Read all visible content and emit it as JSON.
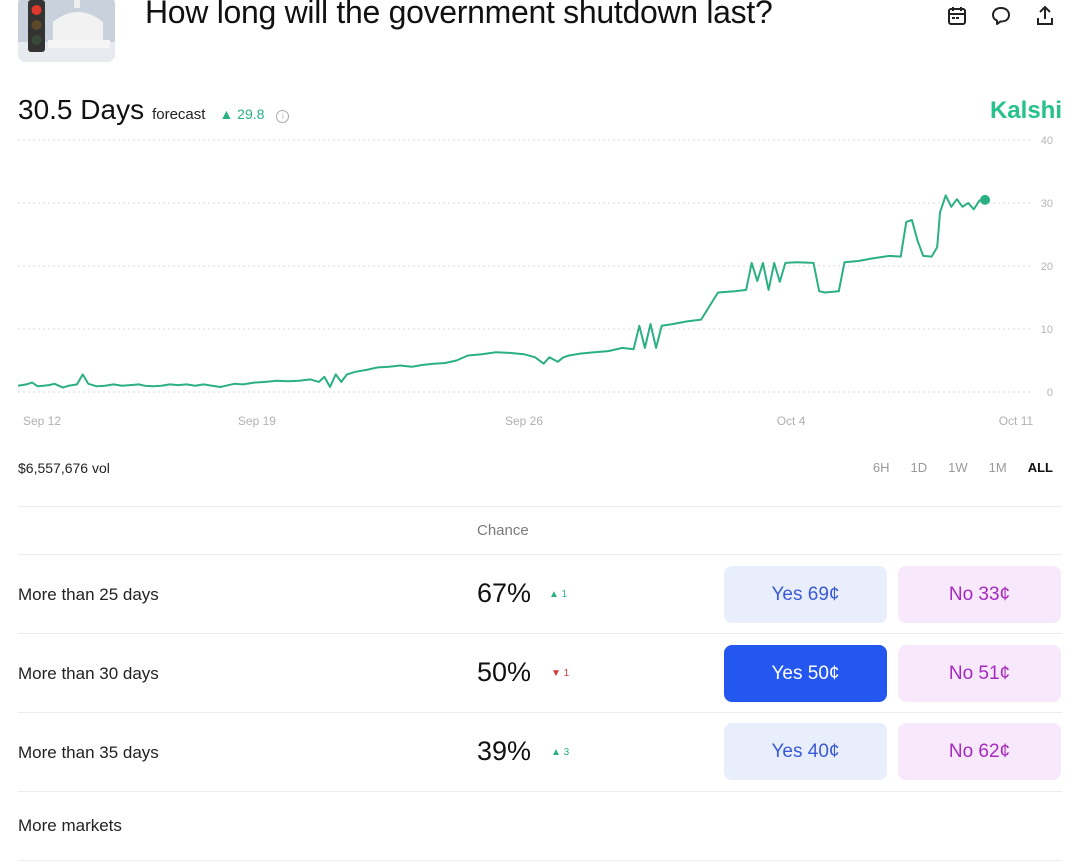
{
  "header": {
    "title": "How long will the government shutdown last?",
    "icons": [
      "calendar-icon",
      "comment-icon",
      "share-icon"
    ]
  },
  "forecast": {
    "value": "30.5 Days",
    "label": "forecast",
    "change": "▲ 29.8",
    "brand": "Kalshi"
  },
  "colors": {
    "accent": "#25c28a",
    "line": "#2bb083",
    "yes_selected": "#2456f0",
    "yes_bg": "#e9eefc",
    "no_bg": "#f7e9fb",
    "down": "#d93838"
  },
  "chart_data": {
    "type": "line",
    "x_ticks": [
      "Sep 12",
      "Sep 19",
      "Sep 26",
      "Oct 4",
      "Oct 11"
    ],
    "y_ticks": [
      "0",
      "10",
      "20",
      "30",
      "40"
    ],
    "ylim": [
      0,
      40
    ],
    "grid": true,
    "series": [
      {
        "values": [
          [
            0,
            1
          ],
          [
            3,
            1.2
          ],
          [
            5,
            1.5
          ],
          [
            7,
            0.9
          ],
          [
            9,
            1
          ],
          [
            11,
            1.1
          ],
          [
            13,
            1.3
          ],
          [
            16,
            0.7
          ],
          [
            18,
            1
          ],
          [
            21,
            1.2
          ],
          [
            23,
            2.8
          ],
          [
            25,
            1.3
          ],
          [
            28,
            0.9
          ],
          [
            31,
            1
          ],
          [
            34,
            1.2
          ],
          [
            37,
            1
          ],
          [
            40,
            1.1
          ],
          [
            43,
            1.2
          ],
          [
            45,
            1
          ],
          [
            48,
            0.9
          ],
          [
            51,
            1
          ],
          [
            54,
            1.2
          ],
          [
            57,
            1.1
          ],
          [
            60,
            1.2
          ],
          [
            63,
            1
          ],
          [
            66,
            1.2
          ],
          [
            69,
            1
          ],
          [
            72,
            0.8
          ],
          [
            74,
            1
          ],
          [
            77,
            1.3
          ],
          [
            80,
            1.2
          ],
          [
            84,
            1.5
          ],
          [
            88,
            1.6
          ],
          [
            92,
            1.8
          ],
          [
            96,
            1.7
          ],
          [
            100,
            1.8
          ],
          [
            104,
            2
          ],
          [
            107,
            1.6
          ],
          [
            109,
            2.4
          ],
          [
            111,
            0.8
          ],
          [
            113,
            2.8
          ],
          [
            115,
            1.6
          ],
          [
            117,
            2.8
          ],
          [
            120,
            3.2
          ],
          [
            124,
            3.5
          ],
          [
            128,
            3.9
          ],
          [
            132,
            4
          ],
          [
            136,
            4.2
          ],
          [
            140,
            4
          ],
          [
            144,
            4.3
          ],
          [
            148,
            4.5
          ],
          [
            152,
            4.6
          ],
          [
            156,
            5
          ],
          [
            160,
            5.8
          ],
          [
            165,
            6
          ],
          [
            170,
            6.3
          ],
          [
            175,
            6.2
          ],
          [
            180,
            6
          ],
          [
            184,
            5.5
          ],
          [
            187,
            4.5
          ],
          [
            189,
            5.5
          ],
          [
            192,
            4.8
          ],
          [
            194,
            5.5
          ],
          [
            196,
            5.8
          ],
          [
            200,
            6.1
          ],
          [
            205,
            6.3
          ],
          [
            210,
            6.5
          ],
          [
            215,
            7
          ],
          [
            219,
            6.8
          ],
          [
            221,
            10.5
          ],
          [
            223,
            7
          ],
          [
            225,
            10.8
          ],
          [
            227,
            7
          ],
          [
            229,
            10.5
          ],
          [
            233,
            10.8
          ],
          [
            238,
            11.2
          ],
          [
            243,
            11.5
          ],
          [
            249,
            15.8
          ],
          [
            255,
            16
          ],
          [
            259,
            16.2
          ],
          [
            261,
            20.5
          ],
          [
            263,
            17.6
          ],
          [
            265,
            20.5
          ],
          [
            267,
            16.2
          ],
          [
            269,
            20.5
          ],
          [
            271,
            17.5
          ],
          [
            273,
            20.5
          ],
          [
            277,
            20.6
          ],
          [
            283,
            20.5
          ],
          [
            285,
            16
          ],
          [
            287,
            15.8
          ],
          [
            292,
            16
          ],
          [
            294,
            20.6
          ],
          [
            299,
            20.8
          ],
          [
            304,
            21.2
          ],
          [
            310,
            21.6
          ],
          [
            314,
            21.5
          ],
          [
            316,
            27
          ],
          [
            318,
            27.3
          ],
          [
            320,
            24
          ],
          [
            322,
            21.6
          ],
          [
            325,
            21.5
          ],
          [
            327,
            23
          ],
          [
            328,
            28.5
          ],
          [
            330,
            31.2
          ],
          [
            332,
            29.4
          ],
          [
            334,
            30.6
          ],
          [
            336,
            29.4
          ],
          [
            338,
            30
          ],
          [
            340,
            29
          ],
          [
            342,
            30.4
          ],
          [
            344,
            30.5
          ]
        ]
      }
    ]
  },
  "volume": "$6,557,676 vol",
  "ranges": [
    "6H",
    "1D",
    "1W",
    "1M",
    "ALL"
  ],
  "active_range": "ALL",
  "table": {
    "chance_header": "Chance",
    "rows": [
      {
        "label": "More than 25 days",
        "chance": "67%",
        "delta": "▲ 1",
        "yes": "Yes 69¢",
        "no": "No 33¢"
      },
      {
        "label": "More than 30 days",
        "chance": "50%",
        "delta": "▼ 1",
        "yes": "Yes 50¢",
        "no": "No 51¢"
      },
      {
        "label": "More than 35 days",
        "chance": "39%",
        "delta": "▲ 3",
        "yes": "Yes 40¢",
        "no": "No 62¢"
      }
    ],
    "more_label": "More markets"
  }
}
